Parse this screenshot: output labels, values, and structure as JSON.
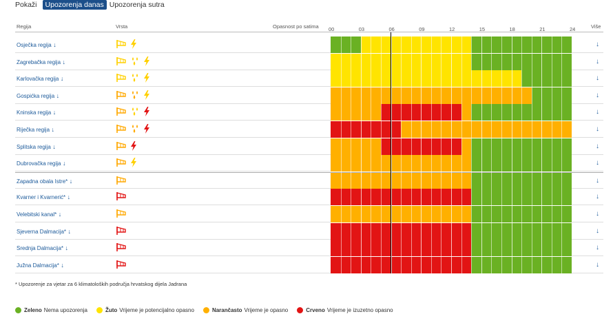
{
  "tabs": {
    "show_label": "Pokaži",
    "today": "Upozorenja danas",
    "tomorrow": "Upozorenja sutra"
  },
  "header": {
    "region": "Regija",
    "type": "Vrsta",
    "danger": "Opasnost po satima",
    "more": "Više",
    "hours": [
      "00",
      "03",
      "06",
      "09",
      "12",
      "15",
      "18",
      "21",
      "24"
    ]
  },
  "colors": {
    "G": "#6ab123",
    "Y": "#ffe400",
    "O": "#ffb000",
    "R": "#e21414"
  },
  "rows": [
    {
      "name": "Osječka regija",
      "icons": [
        "wind-yellow",
        "lightning-yellow"
      ],
      "periods": [
        [
          "G",
          3
        ],
        [
          "Y",
          11
        ],
        [
          "G",
          10
        ]
      ]
    },
    {
      "name": "Zagrebačka regija",
      "icons": [
        "wind-yellow",
        "rain-yellow",
        "lightning-yellow"
      ],
      "periods": [
        [
          "Y",
          14
        ],
        [
          "G",
          10
        ]
      ]
    },
    {
      "name": "Karlovačka regija",
      "icons": [
        "wind-yellow",
        "rain-yellow",
        "lightning-yellow"
      ],
      "periods": [
        [
          "Y",
          19
        ],
        [
          "G",
          5
        ]
      ]
    },
    {
      "name": "Gospićka regija",
      "icons": [
        "wind-orange",
        "rain-orange",
        "lightning-yellow"
      ],
      "periods": [
        [
          "O",
          20
        ],
        [
          "G",
          4
        ]
      ]
    },
    {
      "name": "Kninska regija",
      "icons": [
        "wind-orange",
        "rain-yellow",
        "lightning-red"
      ],
      "periods": [
        [
          "O",
          5
        ],
        [
          "R",
          8
        ],
        [
          "O",
          1
        ],
        [
          "G",
          10
        ]
      ]
    },
    {
      "name": "Riječka regija",
      "icons": [
        "wind-orange",
        "rain-orange",
        "lightning-red"
      ],
      "periods": [
        [
          "R",
          7
        ],
        [
          "O",
          17
        ]
      ]
    },
    {
      "name": "Splitska regija",
      "icons": [
        "wind-orange",
        "lightning-red"
      ],
      "periods": [
        [
          "O",
          5
        ],
        [
          "R",
          8
        ],
        [
          "O",
          1
        ],
        [
          "G",
          10
        ]
      ]
    },
    {
      "name": "Dubrovačka regija",
      "icons": [
        "wind-orange",
        "lightning-yellow"
      ],
      "periods": [
        [
          "O",
          14
        ],
        [
          "G",
          10
        ]
      ]
    },
    {
      "name": "Zapadna obala Istre*",
      "icons": [
        "wind-orange"
      ],
      "periods": [
        [
          "O",
          14
        ],
        [
          "G",
          10
        ]
      ],
      "separator": true
    },
    {
      "name": "Kvarner i Kvarnerić*",
      "icons": [
        "wind-red"
      ],
      "periods": [
        [
          "R",
          14
        ],
        [
          "G",
          10
        ]
      ]
    },
    {
      "name": "Velebitski kanal*",
      "icons": [
        "wind-orange"
      ],
      "periods": [
        [
          "O",
          14
        ],
        [
          "G",
          10
        ]
      ]
    },
    {
      "name": "Sjeverna Dalmacija*",
      "icons": [
        "wind-red"
      ],
      "periods": [
        [
          "R",
          14
        ],
        [
          "G",
          10
        ]
      ]
    },
    {
      "name": "Srednja Dalmacija*",
      "icons": [
        "wind-red"
      ],
      "periods": [
        [
          "R",
          14
        ],
        [
          "G",
          10
        ]
      ]
    },
    {
      "name": "Južna Dalmacija*",
      "icons": [
        "wind-red"
      ],
      "periods": [
        [
          "R",
          14
        ],
        [
          "G",
          10
        ]
      ]
    }
  ],
  "note": "* Upozorenje za vjetar za 6 klimatoloških područja hrvatskog dijela Jadrana",
  "legend": [
    {
      "color": "#6ab123",
      "name": "Zeleno",
      "desc": "Nema upozorenja"
    },
    {
      "color": "#ffe400",
      "name": "Žuto",
      "desc": "Vrijeme je potencijalno opasno"
    },
    {
      "color": "#ffb000",
      "name": "Narančasto",
      "desc": "Vrijeme je opasno"
    },
    {
      "color": "#e21414",
      "name": "Crveno",
      "desc": "Vrijeme je izuzetno opasno"
    }
  ]
}
